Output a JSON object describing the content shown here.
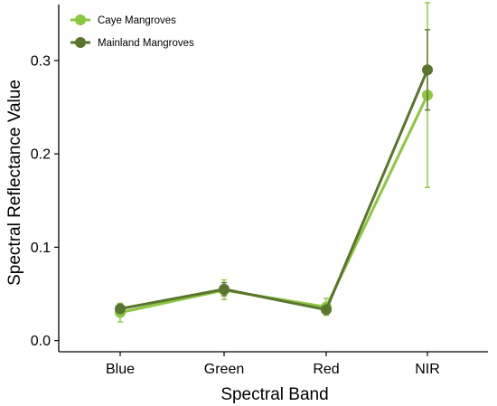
{
  "chart_data": {
    "type": "line",
    "categories": [
      "Blue",
      "Green",
      "Red",
      "NIR"
    ],
    "xlabel": "Spectral Band",
    "ylabel": "Spectral Reflectance Value",
    "ylim": [
      -0.012,
      0.36
    ],
    "yticks": [
      "0.0",
      "0.1",
      "0.2",
      "0.3"
    ],
    "grid": false,
    "legend_position": "top-left",
    "series": [
      {
        "name": "Caye Mangroves",
        "color": "#8DC63F",
        "values": [
          0.03,
          0.054,
          0.036,
          0.263
        ],
        "error_low": [
          0.02,
          0.044,
          0.027,
          0.164
        ],
        "error_high": [
          0.04,
          0.065,
          0.045,
          0.362
        ]
      },
      {
        "name": "Mainland Mangroves",
        "color": "#5A752E",
        "values": [
          0.034,
          0.055,
          0.033,
          0.29
        ],
        "error_low": [
          0.03,
          0.048,
          0.029,
          0.247
        ],
        "error_high": [
          0.038,
          0.062,
          0.037,
          0.333
        ]
      }
    ]
  }
}
